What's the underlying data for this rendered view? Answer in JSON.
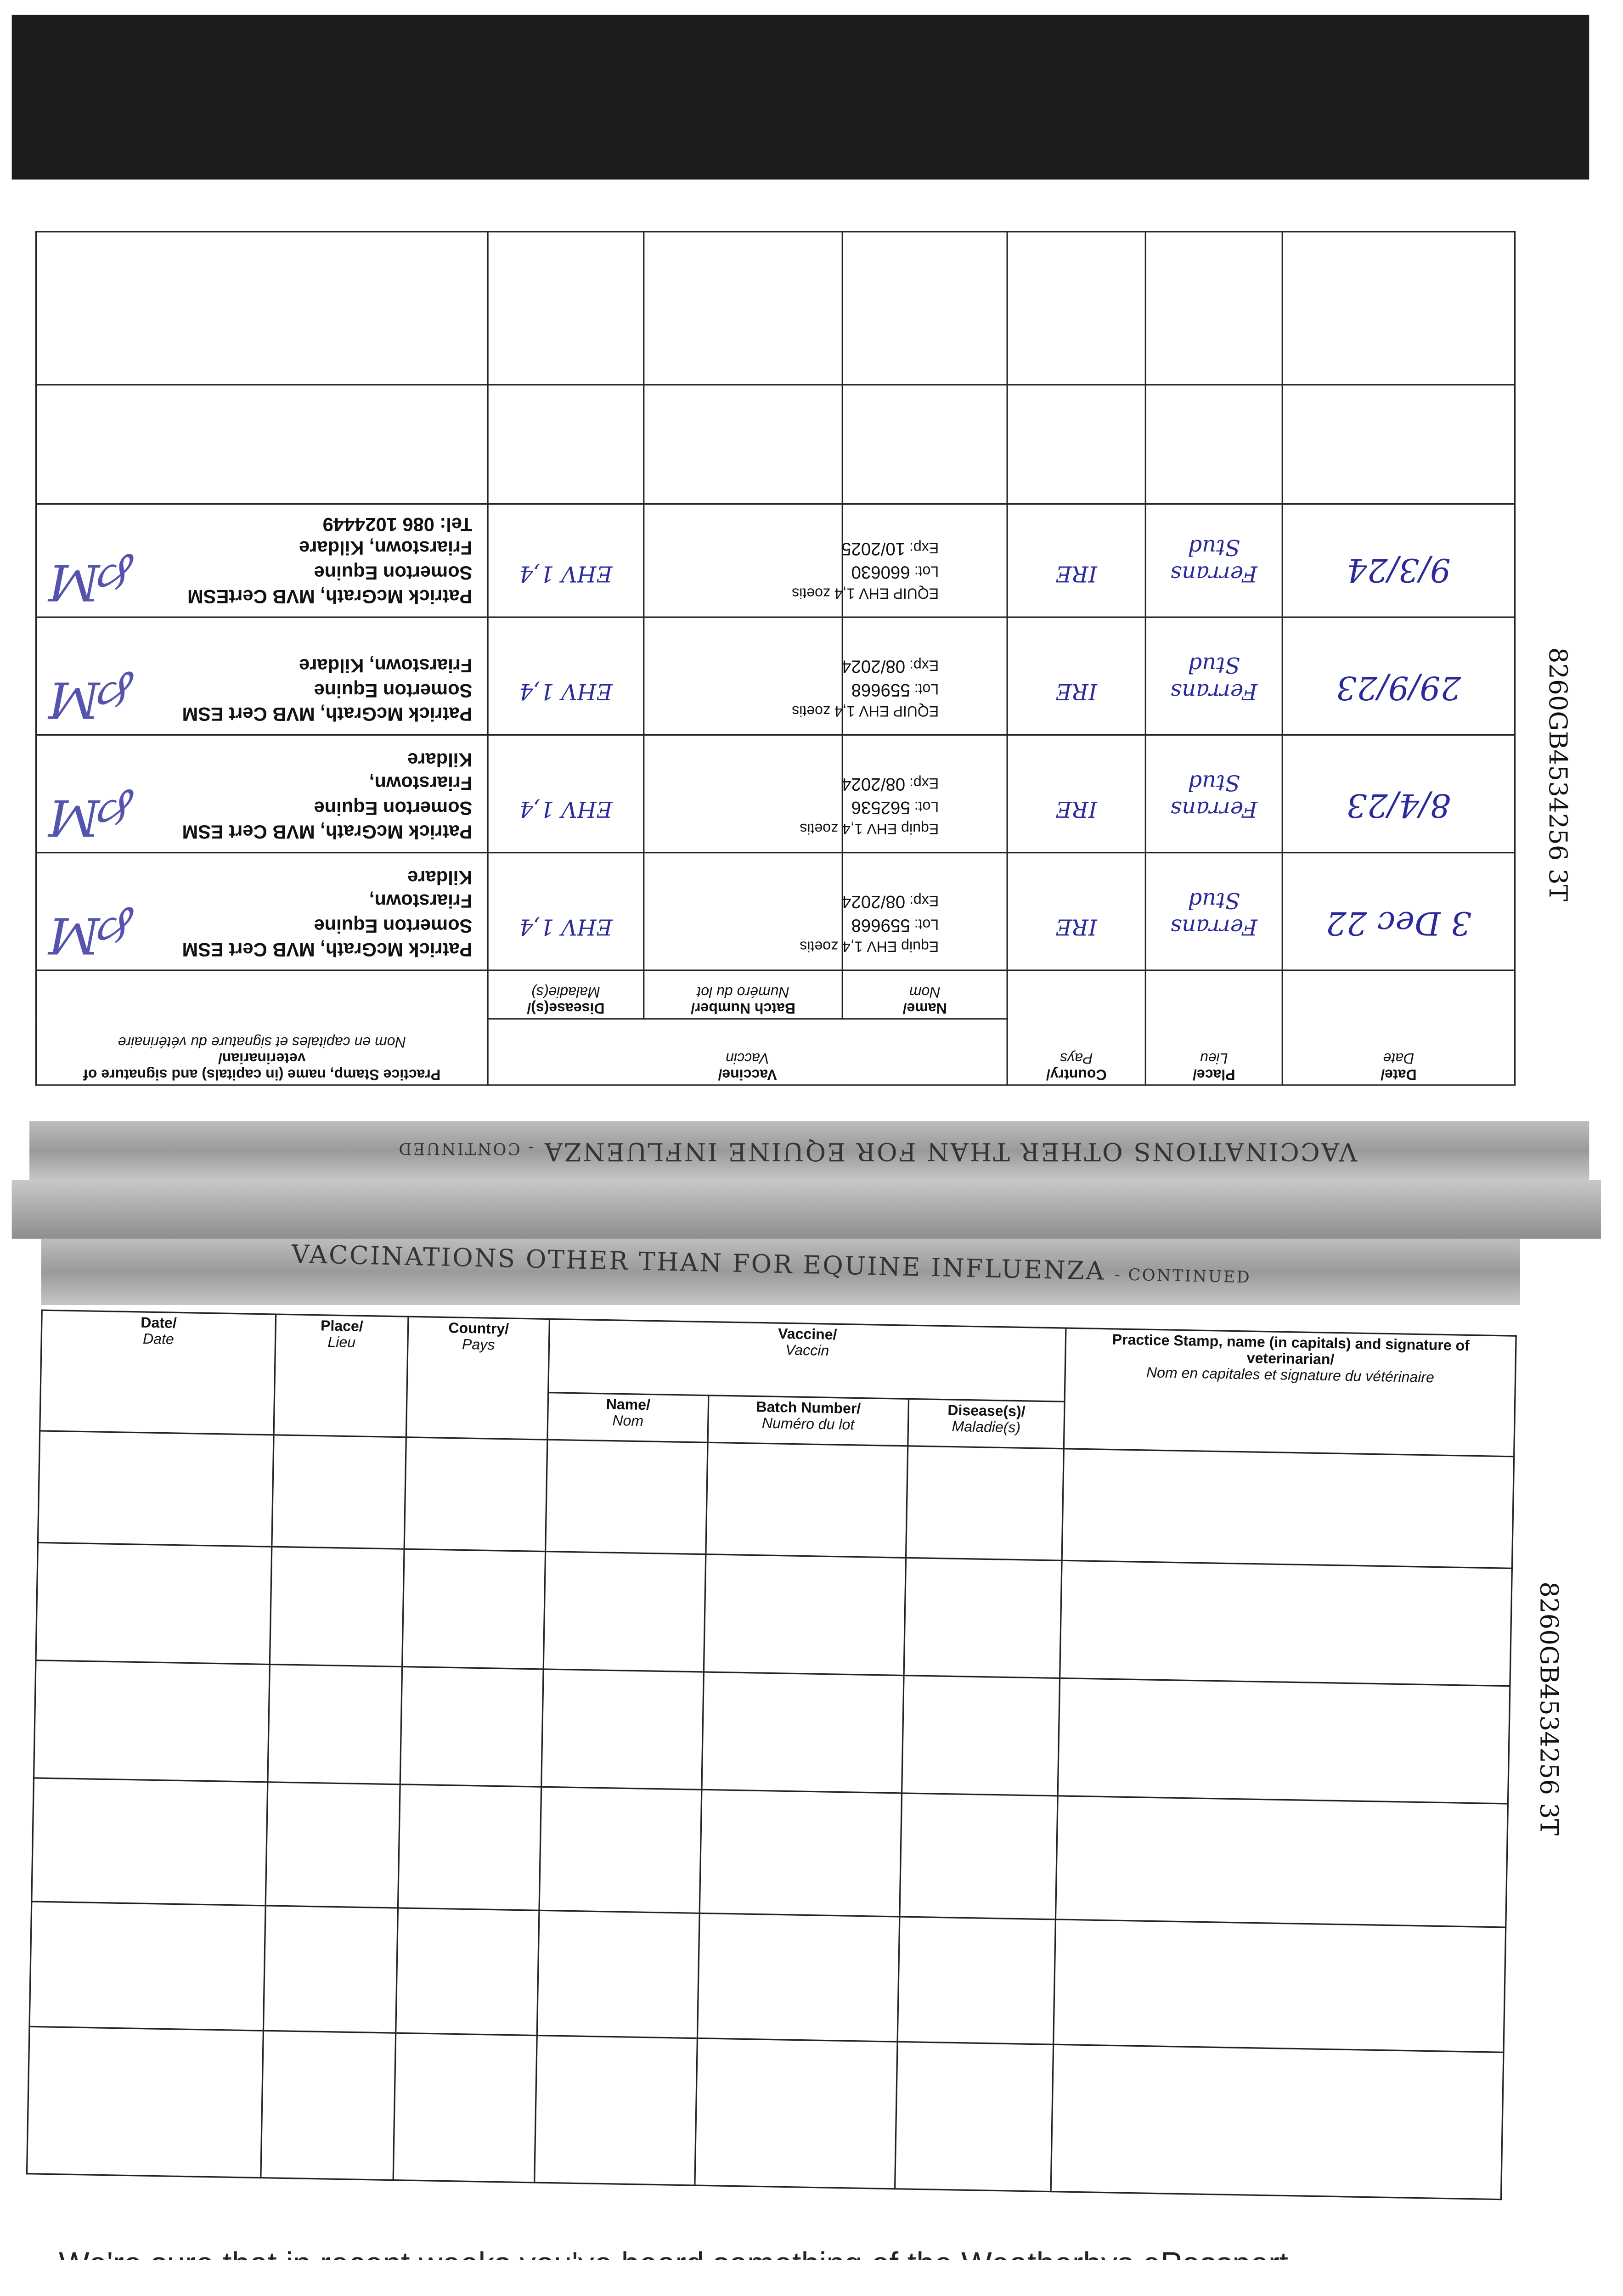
{
  "page_id": "8260GB4534256 3T",
  "section_title": "VACCINATIONS OTHER THAN FOR EQUINE INFLUENZA",
  "section_suffix": "- CONTINUED",
  "headers": {
    "date": "Date/",
    "date_fr": "Date",
    "place": "Place/",
    "place_fr": "Lieu",
    "country": "Country/",
    "country_fr": "Pays",
    "vaccine": "Vaccine/",
    "vaccine_fr": "Vaccin",
    "name": "Name/",
    "name_fr": "Nom",
    "batch": "Batch Number/",
    "batch_fr": "Numéro du lot",
    "disease": "Disease(s)/",
    "disease_fr": "Maladie(s)",
    "stamp": "Practice Stamp, name (in capitals) and signature of veterinarian/",
    "stamp_fr": "Nom en capitales et signature du vétérinaire"
  },
  "top_table_rows": [
    {
      "date": "3 Dec 22",
      "place": "Ferrans Stud",
      "country": "IRE",
      "vaccine_name": "Equip EHV 1,4 zoetis",
      "lot": "559668",
      "exp": "08/2024",
      "disease": "EHV 1,4",
      "stamp": [
        "Patrick McGrath, MVB Cert ESM",
        "Somerton Equine",
        "Friarstown,",
        "Kildare"
      ]
    },
    {
      "date": "8/4/23",
      "place": "Ferrans Stud",
      "country": "IRE",
      "vaccine_name": "Equip EHV 1,4 zoetis",
      "lot": "562536",
      "exp": "08/2024",
      "disease": "EHV 1,4",
      "stamp": [
        "Patrick McGrath, MVB Cert ESM",
        "Somerton Equine",
        "Friarstown,",
        "Kildare"
      ]
    },
    {
      "date": "29/9/23",
      "place": "Ferrans Stud",
      "country": "IRE",
      "vaccine_name": "EQUIP EHV 1,4 zoetis",
      "lot": "559668",
      "exp": "08/2024",
      "disease": "EHV 1,4",
      "stamp": [
        "Patrick McGrath, MVB Cert ESM",
        "Somerton Equine",
        "Friarstown, Kildare"
      ]
    },
    {
      "date": "9/3/24",
      "place": "Ferrans Stud",
      "country": "IRE",
      "vaccine_name": "EQUIP EHV 1,4 zoetis",
      "lot": "660630",
      "exp": "10/2025",
      "disease": "EHV 1,4",
      "stamp": [
        "Patrick McGrath, MVB CertESM",
        "Somerton Equine",
        "Friarstown, Kildare",
        "Tel: 086 1024449"
      ]
    }
  ],
  "labels": {
    "lot": "Lot:",
    "exp": "Exp:"
  },
  "footer_text": "We're sure that in recent weeks you've heard something of the Weatherbys ePassport."
}
